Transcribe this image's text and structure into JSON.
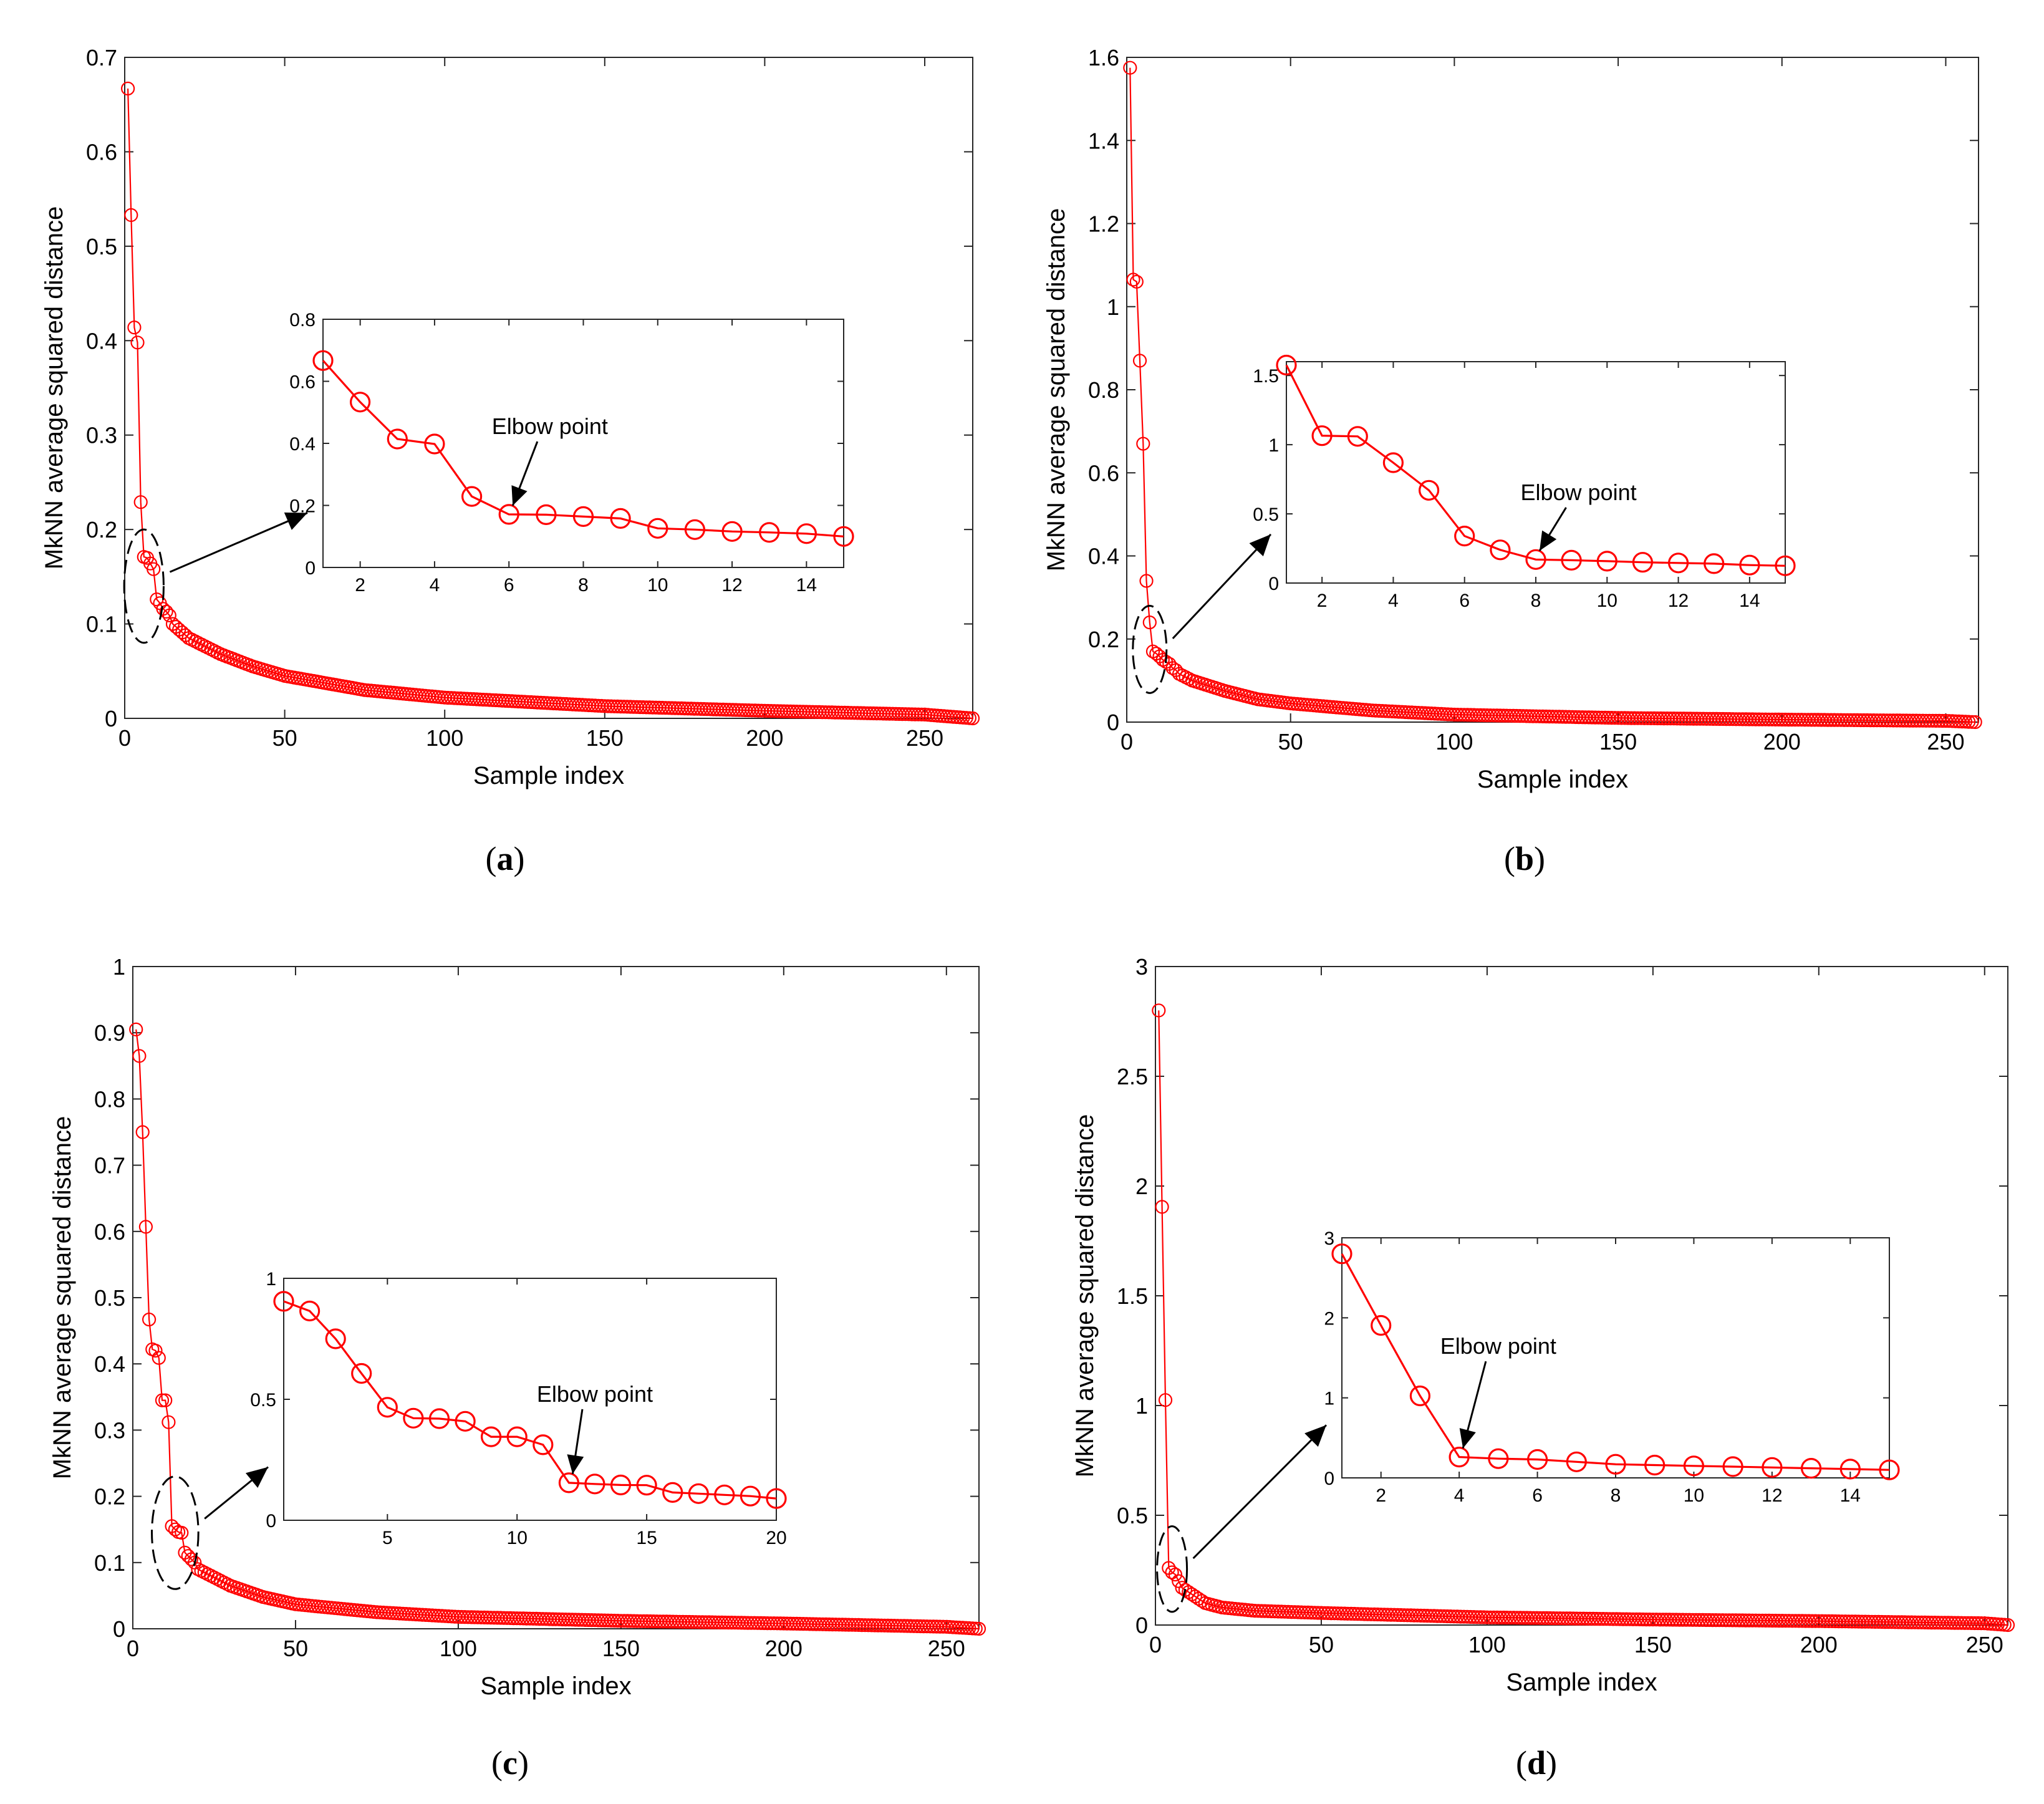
{
  "figure": {
    "series_color": "#ff0000"
  },
  "chart_data": [
    {
      "id": "a",
      "type": "line",
      "caption": "(a)",
      "caption_letter": "a",
      "xlabel": "Sample index",
      "ylabel": "MkNN average squared distance",
      "xlim": [
        0,
        265
      ],
      "ylim": [
        0,
        0.7
      ],
      "xticks": [
        0,
        50,
        100,
        150,
        200,
        250
      ],
      "yticks": [
        0,
        0.1,
        0.2,
        0.3,
        0.4,
        0.5,
        0.6,
        0.7
      ],
      "ytick_labels": [
        "0",
        "0.1",
        "0.2",
        "0.3",
        "0.4",
        "0.5",
        "0.6",
        "0.7"
      ],
      "n_points": 265,
      "head_values": [
        0.667,
        0.533,
        0.414,
        0.398,
        0.229,
        0.171,
        0.17,
        0.164,
        0.158,
        0.126,
        0.122,
        0.116,
        0.113,
        0.109,
        0.1
      ],
      "curve_anchors": [
        [
          15,
          0.1
        ],
        [
          20,
          0.085
        ],
        [
          30,
          0.068
        ],
        [
          40,
          0.055
        ],
        [
          50,
          0.045
        ],
        [
          75,
          0.03
        ],
        [
          100,
          0.022
        ],
        [
          150,
          0.013
        ],
        [
          200,
          0.008
        ],
        [
          250,
          0.004
        ],
        [
          265,
          0.0
        ]
      ],
      "marker": "o",
      "highlight": {
        "x_range": [
          1,
          11
        ],
        "y_range": [
          0.08,
          0.2
        ]
      },
      "inset": {
        "xlim": [
          1,
          15
        ],
        "ylim": [
          0,
          0.8
        ],
        "xticks": [
          2,
          4,
          6,
          8,
          10,
          12,
          14
        ],
        "yticks": [
          0,
          0.2,
          0.4,
          0.6,
          0.8
        ],
        "ytick_labels": [
          "0",
          "0.2",
          "0.4",
          "0.6",
          "0.8"
        ],
        "x": [
          1,
          2,
          3,
          4,
          5,
          6,
          7,
          8,
          9,
          10,
          11,
          12,
          13,
          14,
          15
        ],
        "y": [
          0.667,
          0.533,
          0.414,
          0.398,
          0.229,
          0.171,
          0.17,
          0.164,
          0.158,
          0.126,
          0.122,
          0.116,
          0.113,
          0.109,
          0.1
        ],
        "annotation": {
          "text": "Elbow point",
          "point_x": 6,
          "point_y": 0.171,
          "text_x": 7.1,
          "text_y": 0.43
        }
      }
    },
    {
      "id": "b",
      "type": "line",
      "caption": "(b)",
      "caption_letter": "b",
      "xlabel": "Sample index",
      "ylabel": "MkNN average squared distance",
      "xlim": [
        0,
        260
      ],
      "ylim": [
        0,
        1.6
      ],
      "xticks": [
        0,
        50,
        100,
        150,
        200,
        250
      ],
      "yticks": [
        0,
        0.2,
        0.4,
        0.6,
        0.8,
        1,
        1.2,
        1.4,
        1.6
      ],
      "ytick_labels": [
        "0",
        "0.2",
        "0.4",
        "0.6",
        "0.8",
        "1",
        "1.2",
        "1.4",
        "1.6"
      ],
      "n_points": 259,
      "head_values": [
        1.575,
        1.065,
        1.06,
        0.87,
        0.67,
        0.34,
        0.24,
        0.17,
        0.165,
        0.158,
        0.15,
        0.145,
        0.14,
        0.13,
        0.125
      ],
      "curve_anchors": [
        [
          15,
          0.12
        ],
        [
          20,
          0.1
        ],
        [
          30,
          0.075
        ],
        [
          40,
          0.055
        ],
        [
          50,
          0.045
        ],
        [
          75,
          0.028
        ],
        [
          100,
          0.018
        ],
        [
          150,
          0.01
        ],
        [
          200,
          0.006
        ],
        [
          250,
          0.003
        ],
        [
          259,
          0.0
        ]
      ],
      "marker": "o",
      "highlight": {
        "x_range": [
          3,
          11
        ],
        "y_range": [
          0.07,
          0.28
        ]
      },
      "inset": {
        "xlim": [
          1,
          15
        ],
        "ylim": [
          0,
          1.6
        ],
        "xticks": [
          2,
          4,
          6,
          8,
          10,
          12,
          14
        ],
        "yticks": [
          0,
          0.5,
          1,
          1.5
        ],
        "ytick_labels": [
          "0",
          "0.5",
          "1",
          "1.5"
        ],
        "x": [
          1,
          2,
          3,
          4,
          5,
          6,
          7,
          8,
          9,
          10,
          11,
          12,
          13,
          14,
          15
        ],
        "y": [
          1.575,
          1.065,
          1.06,
          0.87,
          0.67,
          0.34,
          0.24,
          0.17,
          0.165,
          0.158,
          0.15,
          0.145,
          0.14,
          0.13,
          0.125
        ],
        "annotation": {
          "text": "Elbow point",
          "point_x": 8,
          "point_y": 0.17,
          "text_x": 9.2,
          "text_y": 0.6
        }
      }
    },
    {
      "id": "c",
      "type": "line",
      "caption": "(c)",
      "caption_letter": "c",
      "xlabel": "Sample index",
      "ylabel": "MkNN average squared distance",
      "xlim": [
        0,
        260
      ],
      "ylim": [
        0,
        1
      ],
      "xticks": [
        0,
        50,
        100,
        150,
        200,
        250
      ],
      "yticks": [
        0,
        0.1,
        0.2,
        0.3,
        0.4,
        0.5,
        0.6,
        0.7,
        0.8,
        0.9,
        1
      ],
      "ytick_labels": [
        "0",
        "0.1",
        "0.2",
        "0.3",
        "0.4",
        "0.5",
        "0.6",
        "0.7",
        "0.8",
        "0.9",
        "1"
      ],
      "n_points": 260,
      "head_values": [
        0.905,
        0.865,
        0.75,
        0.607,
        0.467,
        0.422,
        0.42,
        0.409,
        0.345,
        0.345,
        0.312,
        0.155,
        0.15,
        0.146,
        0.145,
        0.115,
        0.11,
        0.105,
        0.1,
        0.09
      ],
      "curve_anchors": [
        [
          20,
          0.09
        ],
        [
          30,
          0.065
        ],
        [
          40,
          0.048
        ],
        [
          50,
          0.037
        ],
        [
          75,
          0.025
        ],
        [
          100,
          0.018
        ],
        [
          150,
          0.012
        ],
        [
          200,
          0.008
        ],
        [
          250,
          0.003
        ],
        [
          260,
          0.0
        ]
      ],
      "marker": "o",
      "highlight": {
        "x_range": [
          7,
          19
        ],
        "y_range": [
          0.06,
          0.23
        ]
      },
      "inset": {
        "xlim": [
          1,
          20
        ],
        "ylim": [
          0,
          1
        ],
        "xticks": [
          5,
          10,
          15,
          20
        ],
        "yticks": [
          0,
          0.5,
          1
        ],
        "ytick_labels": [
          "0",
          "0.5",
          "1"
        ],
        "x": [
          1,
          2,
          3,
          4,
          5,
          6,
          7,
          8,
          9,
          10,
          11,
          12,
          13,
          14,
          15,
          16,
          17,
          18,
          19,
          20
        ],
        "y": [
          0.905,
          0.865,
          0.75,
          0.607,
          0.467,
          0.422,
          0.42,
          0.409,
          0.345,
          0.345,
          0.312,
          0.155,
          0.15,
          0.146,
          0.145,
          0.115,
          0.11,
          0.105,
          0.1,
          0.09
        ],
        "annotation": {
          "text": "Elbow point",
          "point_x": 12,
          "point_y": 0.155,
          "text_x": 13.0,
          "text_y": 0.49
        }
      }
    },
    {
      "id": "d",
      "type": "line",
      "caption": "(d)",
      "caption_letter": "d",
      "xlabel": "Sample index",
      "ylabel": "MkNN average squared distance",
      "xlim": [
        0,
        257
      ],
      "ylim": [
        0,
        3
      ],
      "xticks": [
        0,
        50,
        100,
        150,
        200,
        250
      ],
      "yticks": [
        0,
        0.5,
        1,
        1.5,
        2,
        2.5,
        3
      ],
      "ytick_labels": [
        "0",
        "0.5",
        "1",
        "1.5",
        "2",
        "2.5",
        "3"
      ],
      "n_points": 257,
      "head_values": [
        2.8,
        1.905,
        1.025,
        0.26,
        0.24,
        0.23,
        0.2,
        0.17,
        0.16,
        0.15,
        0.14,
        0.13,
        0.12,
        0.11,
        0.1
      ],
      "curve_anchors": [
        [
          15,
          0.1
        ],
        [
          20,
          0.08
        ],
        [
          30,
          0.065
        ],
        [
          50,
          0.055
        ],
        [
          75,
          0.045
        ],
        [
          100,
          0.035
        ],
        [
          150,
          0.025
        ],
        [
          200,
          0.018
        ],
        [
          250,
          0.008
        ],
        [
          257,
          0.0
        ]
      ],
      "marker": "o",
      "highlight": {
        "x_range": [
          2,
          8
        ],
        "y_range": [
          0.06,
          0.45
        ]
      },
      "inset": {
        "xlim": [
          1,
          15
        ],
        "ylim": [
          0,
          3
        ],
        "xticks": [
          2,
          4,
          6,
          8,
          10,
          12,
          14
        ],
        "yticks": [
          0,
          1,
          2,
          3
        ],
        "ytick_labels": [
          "0",
          "1",
          "2",
          "3"
        ],
        "x": [
          1,
          2,
          3,
          4,
          5,
          6,
          7,
          8,
          9,
          10,
          11,
          12,
          13,
          14,
          15
        ],
        "y": [
          2.8,
          1.905,
          1.025,
          0.26,
          0.24,
          0.23,
          0.2,
          0.17,
          0.16,
          0.15,
          0.14,
          0.13,
          0.12,
          0.11,
          0.1
        ],
        "annotation": {
          "text": "Elbow point",
          "point_x": 4,
          "point_y": 0.26,
          "text_x": 5.0,
          "text_y": 1.55
        }
      }
    }
  ]
}
